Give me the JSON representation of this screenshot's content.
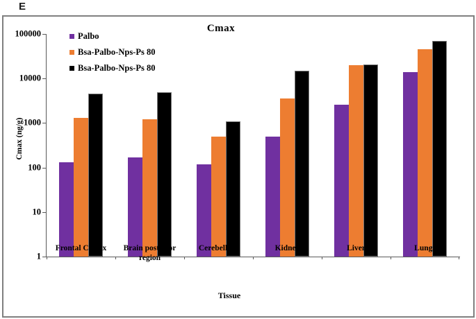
{
  "panel_label": "E",
  "chart_data": {
    "type": "bar",
    "title": "Cmax",
    "xlabel": "Tissue",
    "ylabel": "Cmax (ng/g)",
    "y_scale": "log",
    "ylim": [
      1,
      100000
    ],
    "y_ticks": [
      1,
      10,
      100,
      1000,
      10000,
      100000
    ],
    "grid": false,
    "legend_position": "top-left",
    "categories": [
      "Frontal Cortex",
      "Brain posterior region",
      "Cerebellum",
      "Kidney",
      "Liver",
      "Lungs"
    ],
    "series": [
      {
        "name": "Palbo",
        "color": "#7030A0",
        "values": [
          130,
          170,
          120,
          500,
          2600,
          14000
        ]
      },
      {
        "name": "Bsa-Palbo-Nps-Ps 80",
        "color": "#ED7D31",
        "values": [
          1300,
          1200,
          500,
          3600,
          20000,
          45000
        ]
      },
      {
        "name": "Bsa-Palbo-Nps-Ps 80",
        "color": "#000000",
        "values": [
          4500,
          4900,
          1100,
          15000,
          21000,
          70000
        ]
      }
    ]
  }
}
